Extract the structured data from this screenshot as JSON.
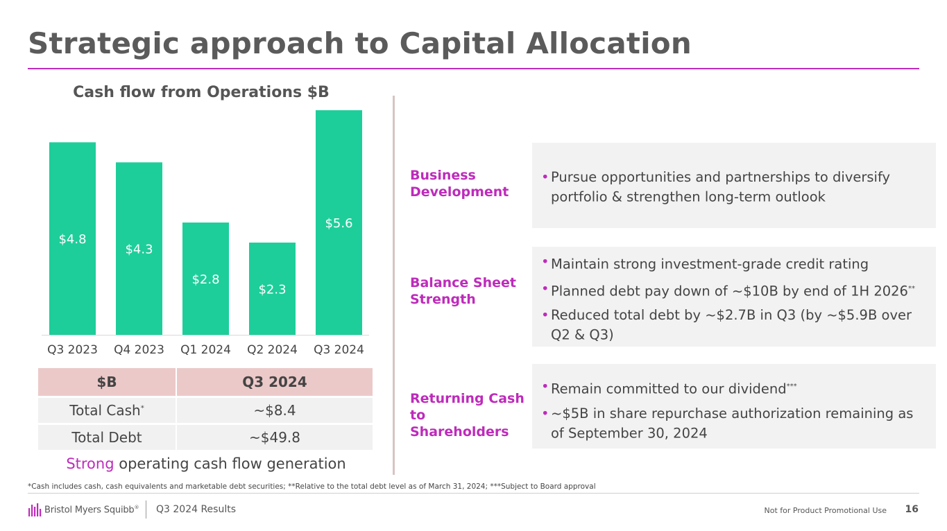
{
  "slide": {
    "title": "Strategic approach to Capital Allocation"
  },
  "chart_data": {
    "type": "bar",
    "title": "Cash flow from Operations $B",
    "categories": [
      "Q3 2023",
      "Q4 2023",
      "Q1 2024",
      "Q2 2024",
      "Q3 2024"
    ],
    "values": [
      4.8,
      4.3,
      2.8,
      2.3,
      5.6
    ],
    "value_labels": [
      "$4.8",
      "$4.3",
      "$2.8",
      "$2.3",
      "$5.6"
    ],
    "xlabel": "",
    "ylabel": "",
    "ylim": [
      0,
      5.6
    ],
    "color": "#1dce9a"
  },
  "cash_table": {
    "headers": [
      "$B",
      "Q3 2024"
    ],
    "rows": [
      {
        "label": "Total Cash",
        "mark": "*",
        "value": "~$8.4"
      },
      {
        "label": "Total Debt",
        "mark": "",
        "value": "~$49.8"
      }
    ]
  },
  "caption": {
    "accent": "Strong",
    "rest": " operating cash flow generation"
  },
  "sections": {
    "business": {
      "label": "Business Development",
      "bullets": [
        {
          "text": "Pursue opportunities and partnerships to diversify portfolio & strengthen long-term outlook",
          "mark": ""
        }
      ]
    },
    "balance": {
      "label": "Balance Sheet Strength",
      "bullets": [
        {
          "text": "Maintain strong investment-grade credit rating",
          "mark": ""
        },
        {
          "text": "Planned debt pay down of ~$10B by end of 1H 2026",
          "mark": "**"
        },
        {
          "text": "Reduced total debt by ~$2.7B in Q3 (by ~$5.9B over Q2 & Q3)",
          "mark": ""
        }
      ]
    },
    "returning": {
      "label": "Returning Cash to Shareholders",
      "bullets": [
        {
          "text": "Remain committed to our dividend",
          "mark": "***"
        },
        {
          "text": "~$5B in share repurchase authorization remaining as of September 30, 2024",
          "mark": ""
        }
      ]
    }
  },
  "footnote": "*Cash includes cash, cash equivalents and marketable debt securities; **Relative to the total debt level as of March 31, 2024; ***Subject to Board approval",
  "footer": {
    "logo_text": "Bristol Myers Squibb",
    "logo_mark": "®",
    "results": "Q3 2024 Results",
    "notice": "Not for Product Promotional Use",
    "page_number": "16"
  },
  "colors": {
    "accent": "#be2bbb",
    "bar": "#1dce9a"
  }
}
